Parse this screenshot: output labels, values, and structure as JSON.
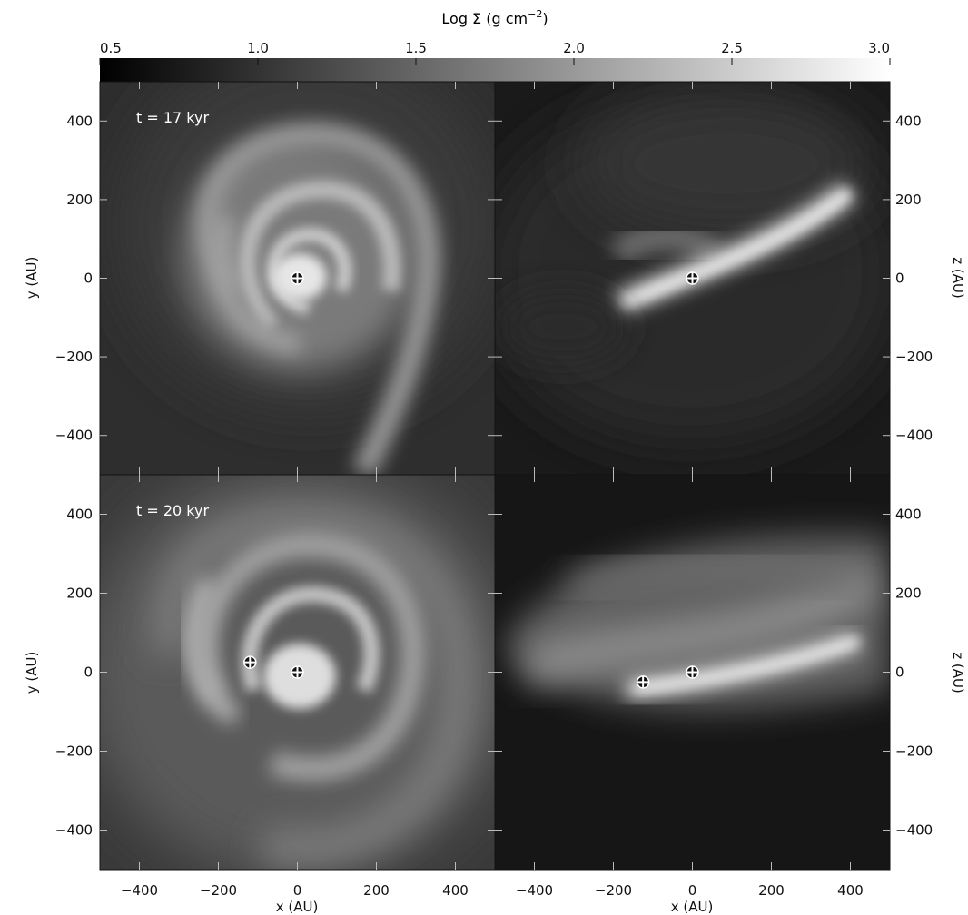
{
  "chart_data": {
    "type": "heatmap",
    "colorbar": {
      "title": "Log Σ (g cm",
      "title_exp": "−2",
      "title_close": ")",
      "range": [
        0.5,
        3.0
      ],
      "ticks": [
        0.5,
        1.0,
        1.5,
        2.0,
        2.5,
        3.0
      ],
      "tick_labels": [
        "0.5",
        "1.0",
        "1.5",
        "2.0",
        "2.5",
        "3.0"
      ],
      "colormap": "grayscale"
    },
    "axes": {
      "x_range": [
        -500,
        500
      ],
      "y_range": [
        -500,
        500
      ],
      "x_ticks": [
        -400,
        -200,
        0,
        200,
        400
      ],
      "x_tick_labels": [
        "−400",
        "−200",
        "0",
        "200",
        "400"
      ],
      "y_ticks": [
        -400,
        -200,
        0,
        200,
        400
      ],
      "y_tick_labels": [
        "−400",
        "−200",
        "0",
        "200",
        "400"
      ],
      "xlabel": "x (AU)",
      "ylabel_left": "y (AU)",
      "ylabel_right": "z (AU)"
    },
    "panels": [
      {
        "row": 0,
        "col": 0,
        "view": "x-y",
        "time_label": "t = 17 kyr",
        "sinks": [
          {
            "x": 0,
            "y": 0
          }
        ]
      },
      {
        "row": 0,
        "col": 1,
        "view": "x-z",
        "time_label": "",
        "sinks": [
          {
            "x": 0,
            "y": 0
          }
        ]
      },
      {
        "row": 1,
        "col": 0,
        "view": "x-y",
        "time_label": "t = 20 kyr",
        "sinks": [
          {
            "x": 0,
            "y": 0
          },
          {
            "x": -120,
            "y": 25
          }
        ]
      },
      {
        "row": 1,
        "col": 1,
        "view": "x-z",
        "time_label": "",
        "sinks": [
          {
            "x": 0,
            "y": 0
          },
          {
            "x": -125,
            "y": -25
          }
        ]
      }
    ]
  }
}
